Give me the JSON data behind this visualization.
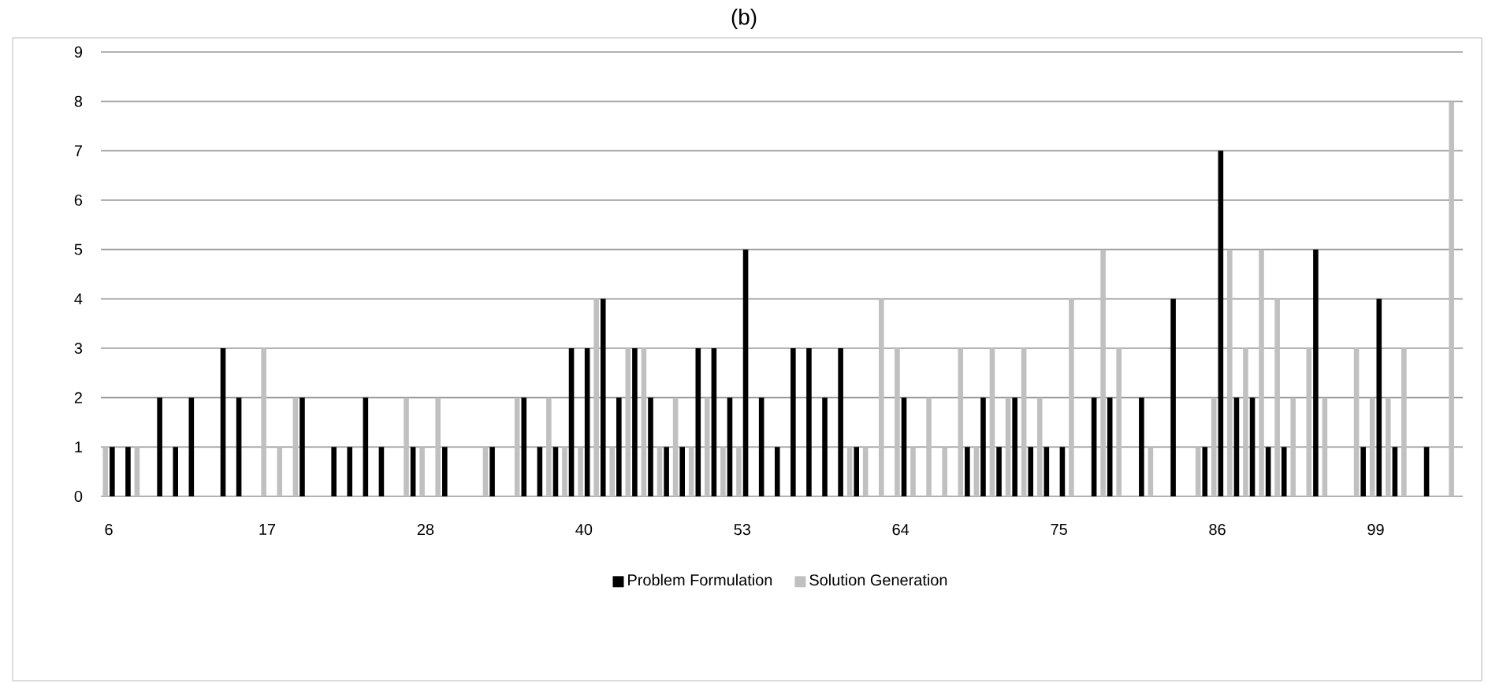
{
  "chart_data": {
    "type": "bar",
    "title": "(b)",
    "categories": [
      "6",
      null,
      null,
      null,
      null,
      null,
      null,
      null,
      null,
      null,
      "17",
      null,
      null,
      null,
      null,
      null,
      null,
      null,
      null,
      null,
      "28",
      null,
      null,
      null,
      null,
      null,
      null,
      null,
      null,
      null,
      "40",
      null,
      null,
      null,
      null,
      null,
      null,
      null,
      null,
      null,
      "53",
      null,
      null,
      null,
      null,
      null,
      null,
      null,
      null,
      null,
      "64",
      null,
      null,
      null,
      null,
      null,
      null,
      null,
      null,
      null,
      "75",
      null,
      null,
      null,
      null,
      null,
      null,
      null,
      null,
      null,
      "86",
      null,
      null,
      null,
      null,
      null,
      null,
      null,
      null,
      null,
      "99",
      null,
      null,
      null,
      null,
      null
    ],
    "series": [
      {
        "name": "Problem Formulation",
        "color": "#000000",
        "values": [
          1,
          1,
          0,
          2,
          1,
          2,
          0,
          3,
          2,
          0,
          0,
          0,
          2,
          0,
          1,
          1,
          2,
          1,
          0,
          1,
          0,
          1,
          0,
          0,
          1,
          0,
          2,
          1,
          1,
          3,
          3,
          4,
          2,
          3,
          2,
          1,
          1,
          3,
          3,
          2,
          5,
          2,
          1,
          3,
          3,
          2,
          3,
          1,
          0,
          0,
          2,
          0,
          0,
          0,
          1,
          2,
          1,
          2,
          1,
          1,
          1,
          0,
          2,
          2,
          0,
          2,
          0,
          4,
          0,
          1,
          7,
          2,
          2,
          1,
          1,
          0,
          5,
          0,
          0,
          1,
          4,
          1,
          0,
          1,
          0,
          0
        ]
      },
      {
        "name": "Solution Generation",
        "color": "#c0c0c0",
        "values": [
          1,
          0,
          1,
          0,
          0,
          0,
          0,
          0,
          0,
          0,
          3,
          1,
          2,
          0,
          0,
          0,
          0,
          0,
          0,
          2,
          1,
          2,
          0,
          0,
          1,
          0,
          2,
          0,
          2,
          1,
          1,
          4,
          1,
          3,
          3,
          1,
          2,
          1,
          2,
          1,
          1,
          0,
          0,
          0,
          0,
          0,
          0,
          1,
          1,
          4,
          3,
          1,
          2,
          1,
          3,
          1,
          3,
          2,
          3,
          2,
          0,
          4,
          0,
          5,
          3,
          0,
          1,
          0,
          0,
          1,
          2,
          5,
          3,
          5,
          4,
          2,
          3,
          2,
          0,
          3,
          2,
          2,
          3,
          0,
          0,
          8
        ]
      }
    ],
    "ylim": [
      0,
      9
    ],
    "yticks": [
      0,
      1,
      2,
      3,
      4,
      5,
      6,
      7,
      8,
      9
    ],
    "grid": "y",
    "legend": "bottom"
  }
}
